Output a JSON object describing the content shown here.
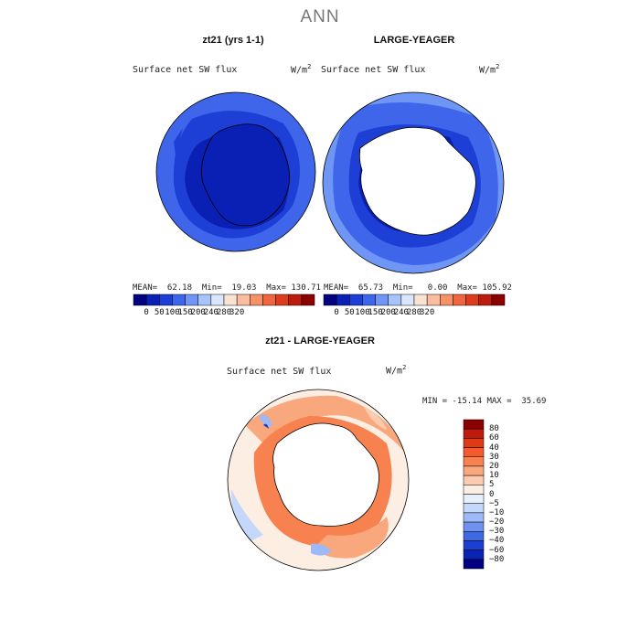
{
  "figure": {
    "title": "ANN",
    "panel_left_title": "zt21 (yrs 1-1)",
    "panel_right_title": "LARGE-YEAGER",
    "panel_diff_title": "zt21 - LARGE-YEAGER",
    "variable": "Surface net SW flux",
    "units_base": "W/m",
    "units_exp": "2"
  },
  "stats": {
    "left": "MEAN=  62.18  Min=  19.03  Max= 130.71",
    "right": "MEAN=  65.73  Min=   0.00  Max= 105.92",
    "diff": "MIN = -15.14 MAX =  35.69"
  },
  "colorbar_abs": {
    "colors": [
      "#000080",
      "#0a1fb4",
      "#1e3fd6",
      "#3f66ea",
      "#6f96f5",
      "#a6c4fb",
      "#dae6fd",
      "#fbe3d4",
      "#f9be9e",
      "#f6926a",
      "#ee6540",
      "#dd3d1f",
      "#bd1c0e",
      "#8b0000"
    ],
    "ticks": [
      "0",
      "50",
      "100",
      "150",
      "200",
      "240",
      "280",
      "320"
    ]
  },
  "colorbar_diff": {
    "colors": [
      "#8b0000",
      "#bf1a0b",
      "#e03916",
      "#f45a2c",
      "#f7814f",
      "#f9a77d",
      "#fbcbb0",
      "#fdeee4",
      "#e6f0fd",
      "#c4d8fb",
      "#9db9f7",
      "#6f92f0",
      "#3f68e3",
      "#1b3fd0",
      "#0a23b0",
      "#000080"
    ],
    "ticks": [
      "80",
      "60",
      "40",
      "30",
      "20",
      "10",
      "5",
      "0",
      "−5",
      "−10",
      "−20",
      "−30",
      "−40",
      "−60",
      "−80"
    ]
  }
}
